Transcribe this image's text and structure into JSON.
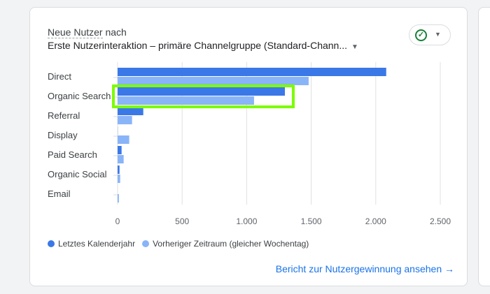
{
  "header": {
    "metric": "Neue Nutzer",
    "connector": " nach",
    "dimension": "Erste Nutzerinteraktion – primäre Channelgruppe (Standard-Chann...",
    "dropdown_icon": "caret-down"
  },
  "compare_button": {
    "icon": "check-circle",
    "dropdown_icon": "caret-down"
  },
  "chart_data": {
    "type": "bar",
    "orientation": "horizontal",
    "categories": [
      "Direct",
      "Organic Search",
      "Referral",
      "Display",
      "Paid Search",
      "Organic Social",
      "Email"
    ],
    "series": [
      {
        "name": "Letztes Kalenderjahr",
        "color": "#3b78e7",
        "values": [
          2081,
          1296,
          199,
          1,
          31,
          15,
          0
        ]
      },
      {
        "name": "Vorheriger Zeitraum (gleicher Wochentag)",
        "color": "#8ab4f8",
        "values": [
          1480,
          1057,
          112,
          90,
          47,
          20,
          10
        ]
      }
    ],
    "xlim": [
      0,
      2500
    ],
    "x_ticks": [
      0,
      500,
      1000,
      1500,
      2000,
      2500
    ],
    "x_tick_labels": [
      "0",
      "500",
      "1.000",
      "1.500",
      "2.000",
      "2.500"
    ],
    "grid": true,
    "legend": "bottom-left",
    "highlight_category": "Organic Search",
    "highlight_color": "#7cfc00"
  },
  "footer": {
    "link": "Bericht zur Nutzergewinnung ansehen",
    "link_icon": "→"
  }
}
